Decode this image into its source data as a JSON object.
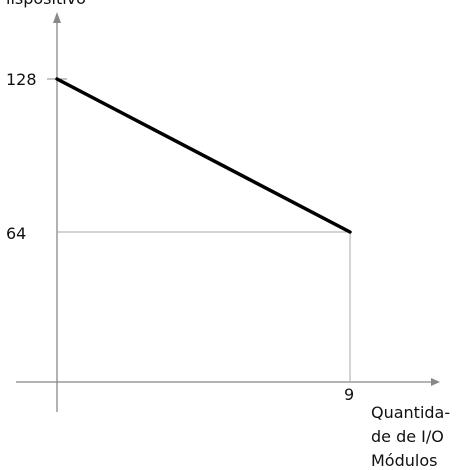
{
  "chart_data": {
    "type": "line",
    "title": "",
    "ylabel_fragment": "lispositivo",
    "xlabel_lines": [
      "Quantida-",
      "de de I/O",
      "Módulos"
    ],
    "x_ticks": [
      9
    ],
    "y_ticks": [
      64,
      128
    ],
    "x": [
      0,
      9
    ],
    "series": [
      {
        "values": [
          128,
          64
        ]
      }
    ],
    "xlim": [
      0,
      9
    ],
    "ylim": [
      0,
      128
    ],
    "grid": false,
    "colors": {
      "line": "#000000",
      "axes": "#888888",
      "guide": "#aaaaaa"
    }
  }
}
